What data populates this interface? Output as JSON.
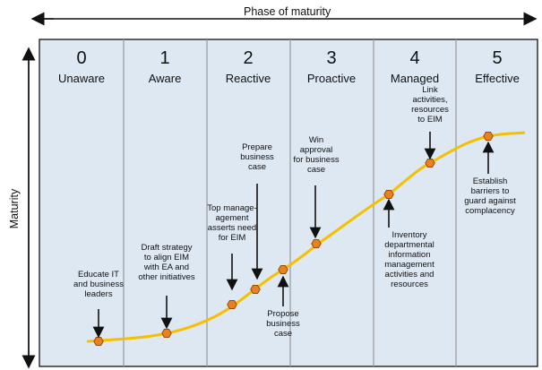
{
  "axes": {
    "x_title": "Phase of maturity",
    "y_title": "Maturity"
  },
  "phases": [
    {
      "number": "0",
      "name": "Unaware"
    },
    {
      "number": "1",
      "name": "Aware"
    },
    {
      "number": "2",
      "name": "Reactive"
    },
    {
      "number": "3",
      "name": "Proactive"
    },
    {
      "number": "4",
      "name": "Managed"
    },
    {
      "number": "5",
      "name": "Effective"
    }
  ],
  "milestones": [
    {
      "text": "Educate IT\nand business\nleaders"
    },
    {
      "text": "Draft strategy\nto align EIM\nwith EA and\nother initiatives"
    },
    {
      "text": "Top manage-\nagement\nasserts need\nfor EIM"
    },
    {
      "text": "Prepare\nbusiness\ncase"
    },
    {
      "text": "Propose\nbusiness\ncase"
    },
    {
      "text": "Win\napproval\nfor business\ncase"
    },
    {
      "text": "Inventory\ndepartmental\ninformation\nmanagement\nactivities and\nresources"
    },
    {
      "text": "Link\nactivities,\nresources\nto EIM"
    },
    {
      "text": "Establish\nbarriers to\nguard against\ncomplacency"
    }
  ],
  "colors": {
    "panel": "#dde8f3",
    "curve": "#f5c000",
    "marker": "#e8821e",
    "marker_stroke": "#a04a00",
    "divider": "#9a9a9a"
  }
}
